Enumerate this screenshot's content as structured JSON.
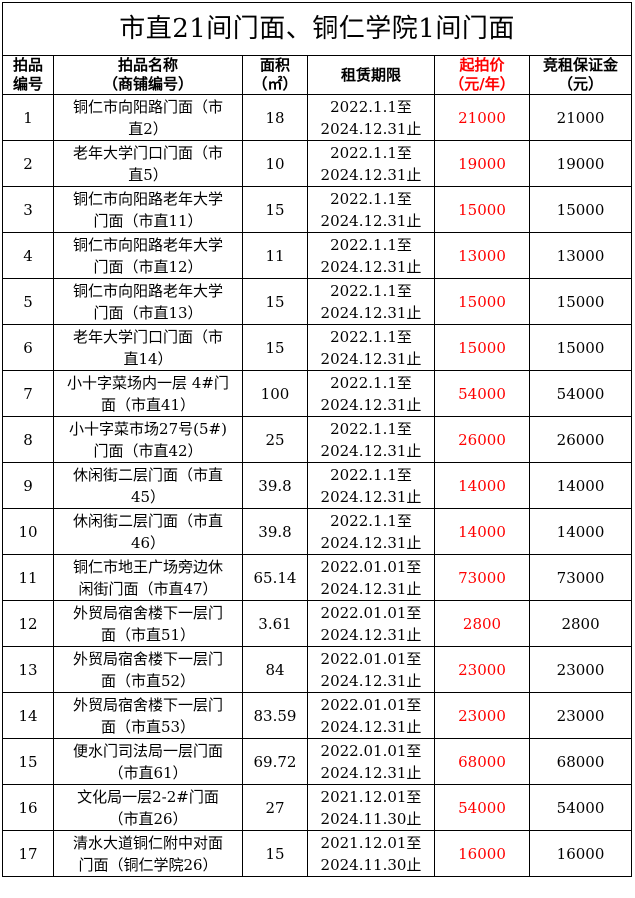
{
  "title": "市直21间门面、铜仁学院1间门面",
  "headers": {
    "no": "拍品\n编号",
    "name": "拍品名称\n（商铺编号）",
    "area": "面积\n（㎡）",
    "period": "租赁期限",
    "price": "起拍价\n（元/年）",
    "deposit": "竞租保证金\n（元）"
  },
  "colors": {
    "price": "#ff0000",
    "text": "#000000"
  },
  "rows": [
    {
      "no": "1",
      "name": "铜仁市向阳路门面（市\n直2）",
      "area": "18",
      "period": "2022.1.1至\n2024.12.31止",
      "price": "21000",
      "deposit": "21000"
    },
    {
      "no": "2",
      "name": "老年大学门口门面（市\n直5）",
      "area": "10",
      "period": "2022.1.1至\n2024.12.31止",
      "price": "19000",
      "deposit": "19000"
    },
    {
      "no": "3",
      "name": "铜仁市向阳路老年大学\n门面（市直11）",
      "area": "15",
      "period": "2022.1.1至\n2024.12.31止",
      "price": "15000",
      "deposit": "15000"
    },
    {
      "no": "4",
      "name": "铜仁市向阳路老年大学\n门面（市直12）",
      "area": "11",
      "period": "2022.1.1至\n2024.12.31止",
      "price": "13000",
      "deposit": "13000"
    },
    {
      "no": "5",
      "name": "铜仁市向阳路老年大学\n门面（市直13）",
      "area": "15",
      "period": "2022.1.1至\n2024.12.31止",
      "price": "15000",
      "deposit": "15000"
    },
    {
      "no": "6",
      "name": "老年大学门口门面（市\n直14）",
      "area": "15",
      "period": "2022.1.1至\n2024.12.31止",
      "price": "15000",
      "deposit": "15000"
    },
    {
      "no": "7",
      "name": "小十字菜场内一层 4#门\n面（市直41）",
      "area": "100",
      "period": "2022.1.1至\n2024.12.31止",
      "price": "54000",
      "deposit": "54000"
    },
    {
      "no": "8",
      "name": "小十字菜市场27号(5#)\n门面（市直42）",
      "area": "25",
      "period": "2022.1.1至\n2024.12.31止",
      "price": "26000",
      "deposit": "26000"
    },
    {
      "no": "9",
      "name": "休闲街二层门面（市直\n45）",
      "area": "39.8",
      "period": "2022.1.1至\n2024.12.31止",
      "price": "14000",
      "deposit": "14000"
    },
    {
      "no": "10",
      "name": "休闲街二层门面（市直\n46）",
      "area": "39.8",
      "period": "2022.1.1至\n2024.12.31止",
      "price": "14000",
      "deposit": "14000"
    },
    {
      "no": "11",
      "name": "铜仁市地王广场旁边休\n闲街门面（市直47）",
      "area": "65.14",
      "period": "2022.01.01至\n2024.12.31止",
      "price": "73000",
      "deposit": "73000"
    },
    {
      "no": "12",
      "name": "外贸局宿舍楼下一层门\n面（市直51）",
      "area": "3.61",
      "period": "2022.01.01至\n2024.12.31止",
      "price": "2800",
      "deposit": "2800"
    },
    {
      "no": "13",
      "name": "外贸局宿舍楼下一层门\n面（市直52）",
      "area": "84",
      "period": "2022.01.01至\n2024.12.31止",
      "price": "23000",
      "deposit": "23000"
    },
    {
      "no": "14",
      "name": "外贸局宿舍楼下一层门\n面（市直53）",
      "area": "83.59",
      "period": "2022.01.01至\n2024.12.31止",
      "price": "23000",
      "deposit": "23000"
    },
    {
      "no": "15",
      "name": "便水门司法局一层门面\n（市直61）",
      "area": "69.72",
      "period": "2022.01.01至\n2024.12.31止",
      "price": "68000",
      "deposit": "68000"
    },
    {
      "no": "16",
      "name": "文化局一层2-2#门面\n（市直26）",
      "area": "27",
      "period": "2021.12.01至\n2024.11.30止",
      "price": "54000",
      "deposit": "54000"
    },
    {
      "no": "17",
      "name": "清水大道铜仁附中对面\n门面（铜仁学院26）",
      "area": "15",
      "period": "2021.12.01至\n2024.11.30止",
      "price": "16000",
      "deposit": "16000"
    }
  ]
}
